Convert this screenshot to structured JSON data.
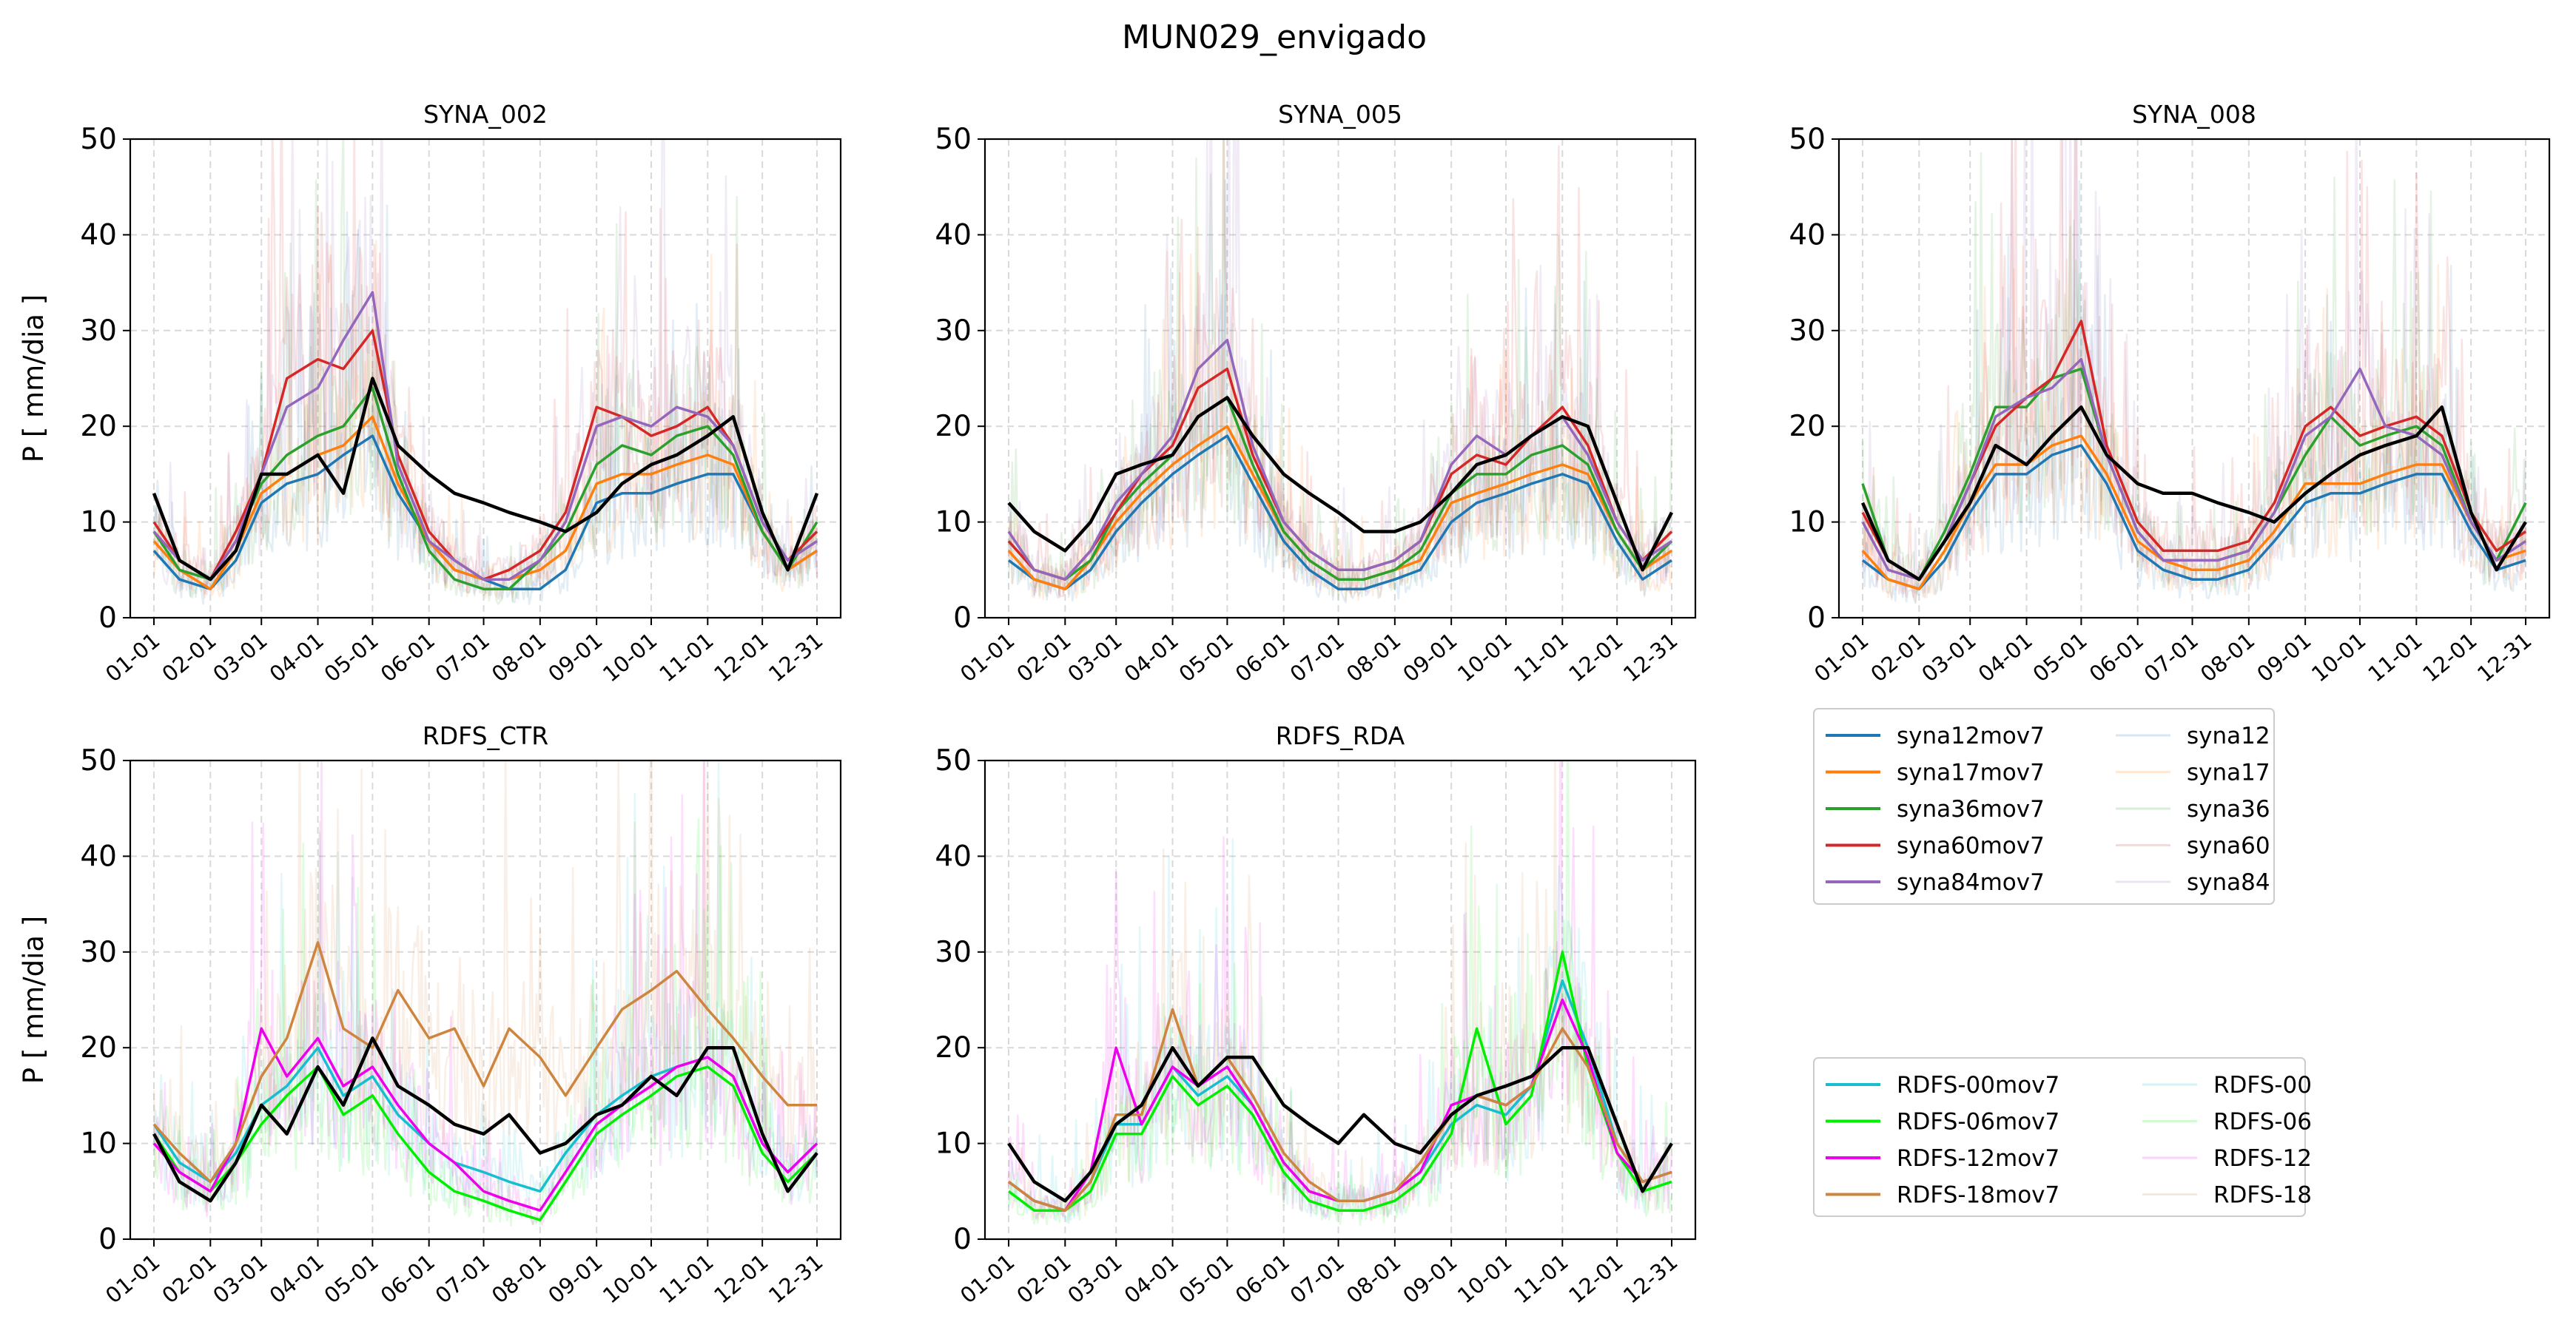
{
  "suptitle": "MUN029_envigado",
  "colors": {
    "syna12": "#1f77b4",
    "syna17": "#ff7f0e",
    "syna36": "#2ca02c",
    "syna60": "#d62728",
    "syna84": "#9467bd",
    "rdfs00": "#17becf",
    "rdfs06": "#00ee00",
    "rdfs12": "#ee00ee",
    "rdfs18": "#cd853f",
    "observed": "#000000",
    "grid": "#d9d9d9"
  },
  "legends": {
    "syna": {
      "items": [
        "syna12mov7",
        "syna17mov7",
        "syna36mov7",
        "syna60mov7",
        "syna84mov7",
        "syna12",
        "syna17",
        "syna36",
        "syna60",
        "syna84"
      ]
    },
    "rdfs": {
      "items": [
        "RDFS-00mov7",
        "RDFS-06mov7",
        "RDFS-12mov7",
        "RDFS-18mov7",
        "RDFS-00",
        "RDFS-06",
        "RDFS-12",
        "RDFS-18"
      ]
    }
  },
  "chart_data": [
    {
      "type": "line",
      "title": "SYNA_002",
      "ylabel": "P [ mm/dia ]",
      "ylim": [
        0,
        50
      ],
      "yticks": [
        "0",
        "10",
        "20",
        "30",
        "40",
        "50"
      ],
      "xticks": [
        "01-01",
        "02-01",
        "03-01",
        "04-01",
        "05-01",
        "06-01",
        "07-01",
        "08-01",
        "09-01",
        "10-01",
        "11-01",
        "12-01",
        "12-31"
      ],
      "grid": true,
      "x_unit": "day of year",
      "x": [
        1,
        15,
        32,
        46,
        60,
        74,
        91,
        105,
        121,
        135,
        152,
        166,
        182,
        196,
        213,
        227,
        244,
        258,
        274,
        288,
        305,
        319,
        335,
        349,
        365
      ],
      "series": [
        {
          "name": "syna12mov7",
          "values": [
            7,
            4,
            3,
            6,
            12,
            14,
            15,
            17,
            19,
            13,
            8,
            5,
            4,
            3,
            3,
            5,
            12,
            13,
            13,
            14,
            15,
            15,
            9,
            5,
            7
          ]
        },
        {
          "name": "syna17mov7",
          "values": [
            8,
            5,
            3,
            7,
            13,
            15,
            17,
            18,
            21,
            14,
            8,
            5,
            4,
            4,
            5,
            7,
            14,
            15,
            15,
            16,
            17,
            16,
            9,
            5,
            7
          ]
        },
        {
          "name": "syna36mov7",
          "values": [
            9,
            5,
            4,
            8,
            14,
            17,
            19,
            20,
            24,
            15,
            7,
            4,
            3,
            3,
            6,
            9,
            16,
            18,
            17,
            19,
            20,
            17,
            9,
            5,
            10
          ]
        },
        {
          "name": "syna60mov7",
          "values": [
            10,
            6,
            4,
            9,
            15,
            25,
            27,
            26,
            30,
            17,
            9,
            6,
            4,
            5,
            7,
            11,
            22,
            21,
            19,
            20,
            22,
            18,
            10,
            6,
            9
          ]
        },
        {
          "name": "syna84mov7",
          "values": [
            9,
            6,
            4,
            8,
            15,
            22,
            24,
            29,
            34,
            16,
            8,
            6,
            4,
            4,
            6,
            10,
            20,
            21,
            20,
            22,
            21,
            18,
            10,
            6,
            8
          ]
        },
        {
          "name": "observed",
          "values": [
            13,
            6,
            4,
            7,
            15,
            15,
            17,
            13,
            25,
            18,
            15,
            13,
            12,
            11,
            10,
            9,
            11,
            14,
            16,
            17,
            19,
            21,
            11,
            5,
            13
          ]
        }
      ]
    },
    {
      "type": "line",
      "title": "SYNA_005",
      "ylabel": "",
      "ylim": [
        0,
        50
      ],
      "yticks": [
        "0",
        "10",
        "20",
        "30",
        "40",
        "50"
      ],
      "xticks": [
        "01-01",
        "02-01",
        "03-01",
        "04-01",
        "05-01",
        "06-01",
        "07-01",
        "08-01",
        "09-01",
        "10-01",
        "11-01",
        "12-01",
        "12-31"
      ],
      "grid": true,
      "x_unit": "day of year",
      "x": [
        1,
        15,
        32,
        46,
        60,
        74,
        91,
        105,
        121,
        135,
        152,
        166,
        182,
        196,
        213,
        227,
        244,
        258,
        274,
        288,
        305,
        319,
        335,
        349,
        365
      ],
      "series": [
        {
          "name": "syna12mov7",
          "values": [
            6,
            4,
            3,
            5,
            9,
            12,
            15,
            17,
            19,
            14,
            8,
            5,
            3,
            3,
            4,
            5,
            10,
            12,
            13,
            14,
            15,
            14,
            8,
            4,
            6
          ]
        },
        {
          "name": "syna17mov7",
          "values": [
            7,
            4,
            3,
            6,
            10,
            13,
            16,
            18,
            20,
            15,
            9,
            6,
            4,
            4,
            5,
            6,
            12,
            13,
            14,
            15,
            16,
            15,
            9,
            5,
            7
          ]
        },
        {
          "name": "syna36mov7",
          "values": [
            8,
            5,
            4,
            6,
            11,
            14,
            17,
            21,
            23,
            16,
            9,
            6,
            4,
            4,
            5,
            7,
            13,
            15,
            15,
            17,
            18,
            16,
            9,
            5,
            8
          ]
        },
        {
          "name": "syna60mov7",
          "values": [
            8,
            5,
            4,
            7,
            11,
            15,
            18,
            24,
            26,
            17,
            10,
            7,
            5,
            5,
            6,
            8,
            15,
            17,
            16,
            19,
            22,
            18,
            10,
            6,
            9
          ]
        },
        {
          "name": "syna84mov7",
          "values": [
            9,
            5,
            4,
            7,
            12,
            15,
            19,
            26,
            29,
            18,
            10,
            7,
            5,
            5,
            6,
            8,
            16,
            19,
            17,
            19,
            21,
            17,
            10,
            6,
            8
          ]
        },
        {
          "name": "observed",
          "values": [
            12,
            9,
            7,
            10,
            15,
            16,
            17,
            21,
            23,
            19,
            15,
            13,
            11,
            9,
            9,
            10,
            13,
            16,
            17,
            19,
            21,
            20,
            12,
            5,
            11
          ]
        }
      ]
    },
    {
      "type": "line",
      "title": "SYNA_008",
      "ylabel": "",
      "ylim": [
        0,
        50
      ],
      "yticks": [
        "0",
        "10",
        "20",
        "30",
        "40",
        "50"
      ],
      "xticks": [
        "01-01",
        "02-01",
        "03-01",
        "04-01",
        "05-01",
        "06-01",
        "07-01",
        "08-01",
        "09-01",
        "10-01",
        "11-01",
        "12-01",
        "12-31"
      ],
      "grid": true,
      "x_unit": "day of year",
      "x": [
        1,
        15,
        32,
        46,
        60,
        74,
        91,
        105,
        121,
        135,
        152,
        166,
        182,
        196,
        213,
        227,
        244,
        258,
        274,
        288,
        305,
        319,
        335,
        349,
        365
      ],
      "series": [
        {
          "name": "syna12mov7",
          "values": [
            6,
            4,
            3,
            6,
            11,
            15,
            15,
            17,
            18,
            14,
            7,
            5,
            4,
            4,
            5,
            8,
            12,
            13,
            13,
            14,
            15,
            15,
            9,
            5,
            6
          ]
        },
        {
          "name": "syna17mov7",
          "values": [
            7,
            4,
            3,
            7,
            12,
            16,
            16,
            18,
            19,
            15,
            8,
            6,
            5,
            5,
            6,
            9,
            14,
            14,
            14,
            15,
            16,
            16,
            10,
            6,
            7
          ]
        },
        {
          "name": "syna36mov7",
          "values": [
            14,
            6,
            4,
            9,
            15,
            22,
            22,
            25,
            26,
            17,
            9,
            6,
            6,
            6,
            7,
            11,
            17,
            21,
            18,
            19,
            20,
            18,
            10,
            6,
            12
          ]
        },
        {
          "name": "syna60mov7",
          "values": [
            11,
            6,
            4,
            8,
            14,
            20,
            23,
            25,
            31,
            18,
            10,
            7,
            7,
            7,
            8,
            12,
            20,
            22,
            19,
            20,
            21,
            19,
            11,
            7,
            9
          ]
        },
        {
          "name": "syna84mov7",
          "values": [
            10,
            5,
            4,
            8,
            14,
            21,
            23,
            24,
            27,
            17,
            9,
            6,
            6,
            6,
            7,
            11,
            19,
            21,
            26,
            20,
            19,
            17,
            10,
            6,
            8
          ]
        },
        {
          "name": "observed",
          "values": [
            12,
            6,
            4,
            8,
            12,
            18,
            16,
            19,
            22,
            17,
            14,
            13,
            13,
            12,
            11,
            10,
            13,
            15,
            17,
            18,
            19,
            22,
            11,
            5,
            10
          ]
        }
      ]
    },
    {
      "type": "line",
      "title": "RDFS_CTR",
      "ylabel": "P [ mm/dia ]",
      "ylim": [
        0,
        50
      ],
      "yticks": [
        "0",
        "10",
        "20",
        "30",
        "40",
        "50"
      ],
      "xticks": [
        "01-01",
        "02-01",
        "03-01",
        "04-01",
        "05-01",
        "06-01",
        "07-01",
        "08-01",
        "09-01",
        "10-01",
        "11-01",
        "12-01",
        "12-31"
      ],
      "grid": true,
      "x_unit": "day of year",
      "x": [
        1,
        15,
        32,
        46,
        60,
        74,
        91,
        105,
        121,
        135,
        152,
        166,
        182,
        196,
        213,
        227,
        244,
        258,
        274,
        288,
        305,
        319,
        335,
        349,
        365
      ],
      "series": [
        {
          "name": "RDFS-00mov7",
          "values": [
            12,
            8,
            6,
            9,
            14,
            16,
            20,
            15,
            17,
            13,
            10,
            8,
            7,
            6,
            5,
            9,
            13,
            15,
            17,
            18,
            19,
            17,
            10,
            7,
            10
          ]
        },
        {
          "name": "RDFS-06mov7",
          "values": [
            11,
            7,
            5,
            8,
            12,
            15,
            18,
            13,
            15,
            11,
            7,
            5,
            4,
            3,
            2,
            6,
            11,
            13,
            15,
            17,
            18,
            16,
            9,
            6,
            9
          ]
        },
        {
          "name": "RDFS-12mov7",
          "values": [
            10,
            7,
            5,
            10,
            22,
            17,
            21,
            16,
            18,
            14,
            10,
            8,
            5,
            4,
            3,
            7,
            12,
            14,
            16,
            18,
            19,
            17,
            10,
            7,
            10
          ]
        },
        {
          "name": "RDFS-18mov7",
          "values": [
            12,
            9,
            6,
            10,
            17,
            21,
            31,
            22,
            20,
            26,
            21,
            22,
            16,
            22,
            19,
            15,
            20,
            24,
            26,
            28,
            24,
            21,
            17,
            14,
            14
          ]
        },
        {
          "name": "observed",
          "values": [
            11,
            6,
            4,
            8,
            14,
            11,
            18,
            14,
            21,
            16,
            14,
            12,
            11,
            13,
            9,
            10,
            13,
            14,
            17,
            15,
            20,
            20,
            11,
            5,
            9
          ]
        }
      ]
    },
    {
      "type": "line",
      "title": "RDFS_RDA",
      "ylabel": "",
      "ylim": [
        0,
        50
      ],
      "yticks": [
        "0",
        "10",
        "20",
        "30",
        "40",
        "50"
      ],
      "xticks": [
        "01-01",
        "02-01",
        "03-01",
        "04-01",
        "05-01",
        "06-01",
        "07-01",
        "08-01",
        "09-01",
        "10-01",
        "11-01",
        "12-01",
        "12-31"
      ],
      "grid": true,
      "x_unit": "day of year",
      "x": [
        1,
        15,
        32,
        46,
        60,
        74,
        91,
        105,
        121,
        135,
        152,
        166,
        182,
        196,
        213,
        227,
        244,
        258,
        274,
        288,
        305,
        319,
        335,
        349,
        365
      ],
      "series": [
        {
          "name": "RDFS-00mov7",
          "values": [
            6,
            4,
            3,
            6,
            12,
            12,
            18,
            15,
            17,
            14,
            8,
            5,
            4,
            4,
            5,
            7,
            12,
            14,
            13,
            16,
            27,
            20,
            10,
            6,
            7
          ]
        },
        {
          "name": "RDFS-06mov7",
          "values": [
            5,
            3,
            3,
            5,
            11,
            11,
            17,
            14,
            16,
            13,
            7,
            4,
            3,
            3,
            4,
            6,
            11,
            22,
            12,
            15,
            30,
            18,
            9,
            5,
            6
          ]
        },
        {
          "name": "RDFS-12mov7",
          "values": [
            6,
            4,
            3,
            7,
            20,
            12,
            18,
            16,
            18,
            14,
            8,
            5,
            4,
            4,
            5,
            7,
            14,
            15,
            14,
            16,
            25,
            19,
            9,
            6,
            7
          ]
        },
        {
          "name": "RDFS-18mov7",
          "values": [
            6,
            4,
            3,
            6,
            13,
            13,
            24,
            16,
            19,
            15,
            9,
            6,
            4,
            4,
            5,
            8,
            13,
            15,
            14,
            16,
            22,
            18,
            10,
            6,
            7
          ]
        },
        {
          "name": "observed",
          "values": [
            10,
            6,
            4,
            7,
            12,
            14,
            20,
            16,
            19,
            19,
            14,
            12,
            10,
            13,
            10,
            9,
            13,
            15,
            16,
            17,
            20,
            20,
            12,
            5,
            10
          ]
        }
      ]
    }
  ]
}
